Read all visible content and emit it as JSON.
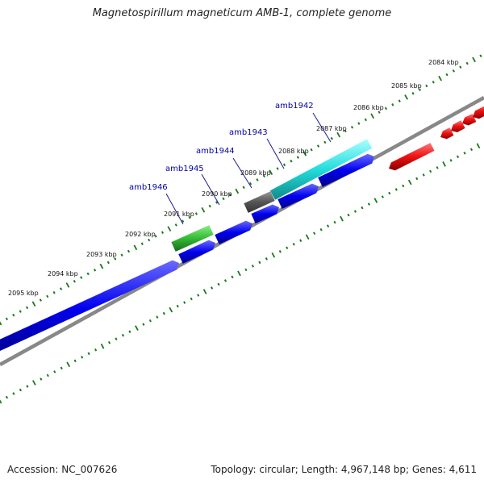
{
  "title": "Magnetospirillum magneticum AMB-1, complete genome",
  "footer": {
    "accession": "Accession: NC_007626",
    "summary": "Topology: circular; Length: 4,967,148 bp; Genes: 4,611"
  },
  "ticks": [
    {
      "label": "2084 kbp"
    },
    {
      "label": "2085 kbp"
    },
    {
      "label": "2086 kbp"
    },
    {
      "label": "2087 kbp"
    },
    {
      "label": "2088 kbp"
    },
    {
      "label": "2089 kbp"
    },
    {
      "label": "2090 kbp"
    },
    {
      "label": "2091 kbp"
    },
    {
      "label": "2092 kbp"
    },
    {
      "label": "2093 kbp"
    },
    {
      "label": "2094 kbp"
    },
    {
      "label": "2095 kbp"
    }
  ],
  "gene_labels": [
    {
      "name": "amb1942"
    },
    {
      "name": "amb1943"
    },
    {
      "name": "amb1944"
    },
    {
      "name": "amb1945"
    },
    {
      "name": "amb1946"
    }
  ],
  "colors": {
    "backbone": "#888888",
    "tick": "#1a7a1a",
    "blue": "#0000ee",
    "cyan": "#22dddd",
    "green": "#33bb33",
    "gray": "#555555",
    "red": "#ee1111",
    "label": "#0000aa"
  }
}
